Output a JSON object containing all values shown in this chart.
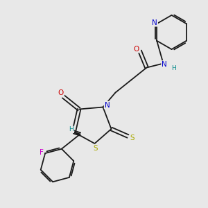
{
  "bg_color": "#e8e8e8",
  "atom_colors": {
    "C": "#1a1a1a",
    "N": "#0000cc",
    "O": "#cc0000",
    "S": "#aaaa00",
    "F": "#cc00cc",
    "H": "#008888"
  },
  "bond_color": "#1a1a1a",
  "figsize": [
    3.0,
    3.0
  ],
  "dpi": 100,
  "xlim": [
    0,
    10
  ],
  "ylim": [
    0,
    10
  ]
}
